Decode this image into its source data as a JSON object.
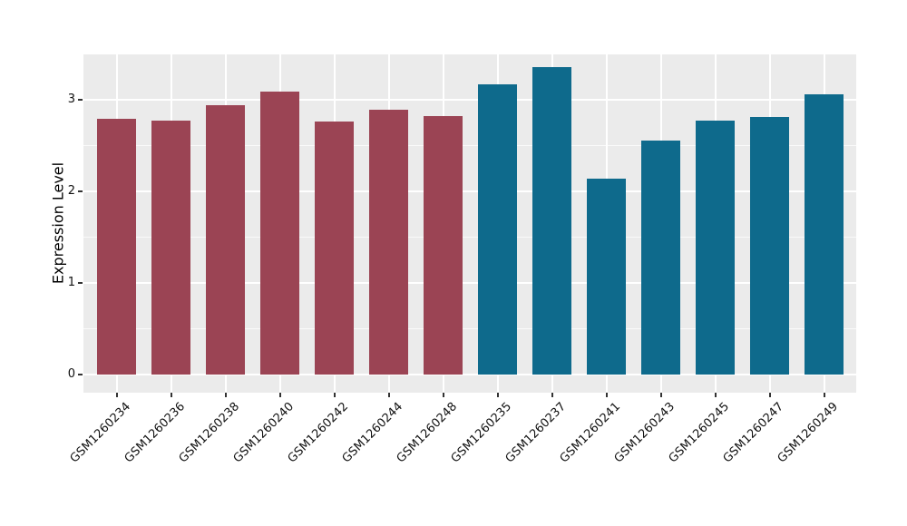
{
  "chart_data": {
    "type": "bar",
    "title": "",
    "xlabel": "",
    "ylabel": "Expression Level",
    "categories": [
      "GSM1260234",
      "GSM1260236",
      "GSM1260238",
      "GSM1260240",
      "GSM1260242",
      "GSM1260244",
      "GSM1260248",
      "GSM1260235",
      "GSM1260237",
      "GSM1260241",
      "GSM1260243",
      "GSM1260245",
      "GSM1260247",
      "GSM1260249"
    ],
    "bars": [
      {
        "label": "GSM1260234",
        "value": 2.79,
        "group": "A"
      },
      {
        "label": "GSM1260236",
        "value": 2.77,
        "group": "A"
      },
      {
        "label": "GSM1260238",
        "value": 2.94,
        "group": "A"
      },
      {
        "label": "GSM1260240",
        "value": 3.09,
        "group": "A"
      },
      {
        "label": "GSM1260242",
        "value": 2.76,
        "group": "A"
      },
      {
        "label": "GSM1260244",
        "value": 2.89,
        "group": "A"
      },
      {
        "label": "GSM1260248",
        "value": 2.82,
        "group": "A"
      },
      {
        "label": "GSM1260235",
        "value": 3.17,
        "group": "B"
      },
      {
        "label": "GSM1260237",
        "value": 3.36,
        "group": "B"
      },
      {
        "label": "GSM1260241",
        "value": 2.14,
        "group": "B"
      },
      {
        "label": "GSM1260243",
        "value": 2.55,
        "group": "B"
      },
      {
        "label": "GSM1260245",
        "value": 2.77,
        "group": "B"
      },
      {
        "label": "GSM1260247",
        "value": 2.81,
        "group": "B"
      },
      {
        "label": "GSM1260249",
        "value": 3.06,
        "group": "B"
      }
    ],
    "group_colors": {
      "A": "#9B4454",
      "B": "#0E6A8C"
    },
    "y_ticks": [
      0,
      1,
      2,
      3
    ],
    "y_tick_labels": [
      "0",
      "1",
      "2",
      "3"
    ],
    "y_minor_ticks": [
      0.5,
      1.5,
      2.5,
      3.5
    ],
    "ylim": [
      -0.2,
      3.49
    ],
    "x_tick_rotation": -45,
    "grid": "on",
    "legend": "none",
    "panel_bg": "#EBEBEB",
    "grid_major_color": "#FFFFFF",
    "grid_minor_color": "#FFFFFF",
    "tick_color": "#333333",
    "text_color": "#111111",
    "figure_bg": "#FFFFFF"
  }
}
